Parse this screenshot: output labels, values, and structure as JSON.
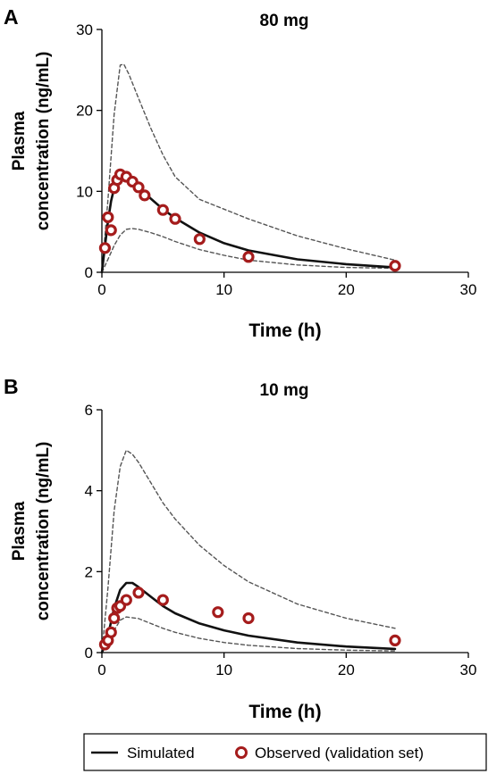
{
  "chart_data": [
    {
      "panel_label": "A",
      "type": "line",
      "title": "80 mg",
      "xlabel": "Time (h)",
      "ylabel_lines": [
        "Plasma",
        "concentration (ng/mL)"
      ],
      "xlim": [
        0,
        30
      ],
      "ylim": [
        0,
        30
      ],
      "xticks": [
        0,
        10,
        20,
        30
      ],
      "yticks": [
        0,
        10,
        20,
        30
      ],
      "grid": false,
      "series": [
        {
          "name": "Simulated",
          "kind": "line",
          "style": "solid",
          "color": "#111111",
          "x": [
            0,
            0.25,
            0.5,
            0.75,
            1,
            1.25,
            1.5,
            1.75,
            2,
            2.5,
            3,
            4,
            5,
            6,
            8,
            10,
            12,
            16,
            20,
            24
          ],
          "y": [
            0,
            3.2,
            6.3,
            8.8,
            10.4,
            11.3,
            11.8,
            12.0,
            11.9,
            11.3,
            10.6,
            9.1,
            7.8,
            6.7,
            4.9,
            3.6,
            2.7,
            1.6,
            1.0,
            0.6
          ]
        },
        {
          "kind": "line",
          "style": "dashed",
          "color": "#555555",
          "x": [
            0,
            0.5,
            1,
            1.5,
            1.8,
            2.2,
            3,
            4,
            5,
            6,
            8,
            10,
            12,
            16,
            20,
            24
          ],
          "y": [
            0,
            9.0,
            19.5,
            25.6,
            25.7,
            24.5,
            21.5,
            17.8,
            14.5,
            11.8,
            9.0,
            7.8,
            6.6,
            4.5,
            2.9,
            1.5
          ]
        },
        {
          "kind": "line",
          "style": "dashed",
          "color": "#555555",
          "x": [
            0,
            0.5,
            1,
            1.5,
            2,
            2.5,
            3,
            4,
            5,
            6,
            8,
            10,
            12,
            16,
            20,
            24
          ],
          "y": [
            0,
            1.6,
            3.3,
            4.6,
            5.3,
            5.4,
            5.3,
            4.9,
            4.4,
            3.8,
            2.8,
            2.1,
            1.5,
            0.9,
            0.6,
            0.5
          ]
        },
        {
          "name": "Observed (validation set)",
          "kind": "points",
          "color": "#a51c1c",
          "x": [
            0.25,
            0.5,
            0.75,
            1,
            1.25,
            1.5,
            2,
            2.5,
            3,
            3.5,
            5,
            6,
            8,
            12,
            24
          ],
          "y": [
            3.0,
            6.8,
            5.2,
            10.4,
            11.4,
            12.1,
            11.8,
            11.2,
            10.5,
            9.5,
            7.7,
            6.6,
            4.1,
            1.9,
            0.8
          ]
        }
      ]
    },
    {
      "panel_label": "B",
      "type": "line",
      "title": "10 mg",
      "xlabel": "Time (h)",
      "ylabel_lines": [
        "Plasma",
        "concentration (ng/mL)"
      ],
      "xlim": [
        0,
        30
      ],
      "ylim": [
        0,
        6
      ],
      "xticks": [
        0,
        10,
        20,
        30
      ],
      "yticks": [
        0,
        2,
        4,
        6
      ],
      "grid": false,
      "series": [
        {
          "name": "Simulated",
          "kind": "line",
          "style": "solid",
          "color": "#111111",
          "x": [
            0,
            0.5,
            1,
            1.5,
            2,
            2.5,
            3,
            4,
            5,
            6,
            8,
            10,
            12,
            16,
            20,
            24
          ],
          "y": [
            0,
            0.42,
            1.1,
            1.55,
            1.72,
            1.72,
            1.62,
            1.38,
            1.15,
            0.97,
            0.72,
            0.55,
            0.42,
            0.25,
            0.15,
            0.09
          ]
        },
        {
          "kind": "line",
          "style": "dashed",
          "color": "#555555",
          "x": [
            0,
            0.5,
            1,
            1.5,
            2,
            2.5,
            3,
            4,
            5,
            6,
            8,
            10,
            12,
            16,
            20,
            24
          ],
          "y": [
            0,
            1.6,
            3.5,
            4.6,
            5.0,
            4.9,
            4.7,
            4.2,
            3.7,
            3.3,
            2.65,
            2.15,
            1.75,
            1.2,
            0.85,
            0.6
          ]
        },
        {
          "kind": "line",
          "style": "dashed",
          "color": "#555555",
          "x": [
            0,
            0.5,
            1,
            1.5,
            2,
            3,
            4,
            5,
            6,
            8,
            10,
            12,
            16,
            20,
            24
          ],
          "y": [
            0,
            0.2,
            0.55,
            0.8,
            0.88,
            0.84,
            0.72,
            0.6,
            0.5,
            0.35,
            0.25,
            0.18,
            0.1,
            0.06,
            0.04
          ]
        },
        {
          "name": "Observed (validation set)",
          "kind": "points",
          "color": "#a51c1c",
          "x": [
            0.25,
            0.5,
            0.75,
            1,
            1.25,
            1.5,
            2,
            3,
            5,
            9.5,
            12,
            24
          ],
          "y": [
            0.2,
            0.3,
            0.5,
            0.85,
            1.1,
            1.15,
            1.3,
            1.48,
            1.3,
            1.0,
            0.85,
            0.3
          ]
        }
      ]
    }
  ],
  "legend": {
    "position": "bottom",
    "items": [
      {
        "label": "Simulated",
        "symbol": "line"
      },
      {
        "label": "Observed (validation set)",
        "symbol": "circle"
      }
    ]
  }
}
